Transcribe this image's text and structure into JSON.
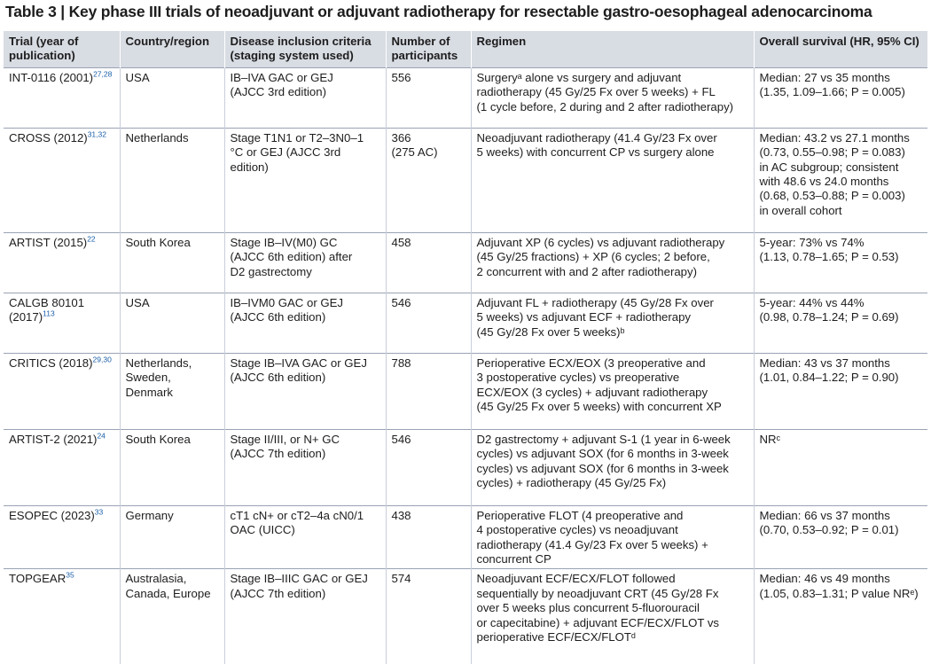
{
  "title": "Table 3 | Key phase III trials of neoadjuvant or adjuvant radiotherapy for resectable gastro-oesophageal adenocarcinoma",
  "columns": [
    "Trial (year of publication)",
    "Country/region",
    "Disease inclusion criteria (staging system used)",
    "Number of participants",
    "Regimen",
    "Overall survival (HR, 95% CI)"
  ],
  "rows": [
    {
      "trial": "INT-0116 (2001)",
      "ref": "27,28",
      "country": "USA",
      "criteria": "IB–IVA GAC or GEJ\n(AJCC 3rd edition)",
      "participants": "556",
      "regimen": "Surgeryᵃ alone vs surgery and adjuvant\nradiotherapy (45 Gy/25 Fx over 5 weeks) + FL\n(1 cycle before, 2 during and 2 after radiotherapy)",
      "survival": "Median: 27 vs 35 months\n(1.35, 1.09–1.66; P = 0.005)"
    },
    {
      "trial": "CROSS (2012)",
      "ref": "31,32",
      "country": "Netherlands",
      "criteria": "Stage T1N1 or T2–3N0–1\n°C or GEJ (AJCC 3rd\nedition)",
      "participants": "366\n(275 AC)",
      "regimen": "Neoadjuvant radiotherapy (41.4 Gy/23 Fx over\n5 weeks) with concurrent CP vs surgery alone",
      "survival": "Median: 43.2 vs 27.1 months\n(0.73, 0.55–0.98; P = 0.083)\nin AC subgroup; consistent\nwith 48.6 vs 24.0 months\n(0.68, 0.53–0.88; P = 0.003)\nin overall cohort"
    },
    {
      "trial": "ARTIST (2015)",
      "ref": "22",
      "country": "South Korea",
      "criteria": "Stage IB–IV(M0) GC\n(AJCC 6th edition) after\nD2 gastrectomy",
      "participants": "458",
      "regimen": "Adjuvant XP (6 cycles) vs adjuvant radiotherapy\n(45 Gy/25 fractions) + XP (6 cycles; 2 before,\n2 concurrent with and 2 after radiotherapy)",
      "survival": "5-year: 73% vs 74%\n(1.13, 0.78–1.65; P = 0.53)"
    },
    {
      "trial": "CALGB 80101\n(2017)",
      "ref": "113",
      "country": "USA",
      "criteria": "IB–IVM0 GAC or GEJ\n(AJCC 6th edition)",
      "participants": "546",
      "regimen": "Adjuvant FL + radiotherapy (45 Gy/28 Fx over\n5 weeks) vs adjuvant ECF + radiotherapy\n(45 Gy/28 Fx over 5 weeks)ᵇ",
      "survival": "5-year: 44% vs 44%\n(0.98, 0.78–1.24; P = 0.69)"
    },
    {
      "trial": "CRITICS (2018)",
      "ref": "29,30",
      "country": "Netherlands,\nSweden,\nDenmark",
      "criteria": "Stage IB–IVA GAC or GEJ\n(AJCC 6th edition)",
      "participants": "788",
      "regimen": "Perioperative ECX/EOX (3 preoperative and\n3 postoperative cycles) vs preoperative\nECX/EOX (3 cycles) + adjuvant radiotherapy\n(45 Gy/25 Fx over 5 weeks) with concurrent XP",
      "survival": "Median: 43 vs 37 months\n(1.01, 0.84–1.22; P = 0.90)"
    },
    {
      "trial": "ARTIST-2 (2021)",
      "ref": "24",
      "country": "South Korea",
      "criteria": "Stage II/III, or N+ GC\n(AJCC 7th edition)",
      "participants": "546",
      "regimen": "D2 gastrectomy + adjuvant S-1 (1 year in 6-week\ncycles) vs adjuvant SOX (for 6 months in 3-week\ncycles) vs adjuvant SOX (for 6 months in 3-week\ncycles) + radiotherapy (45 Gy/25 Fx)",
      "survival": "NRᶜ"
    },
    {
      "trial": "ESOPEC (2023)",
      "ref": "33",
      "country": "Germany",
      "criteria": "cT1 cN+ or cT2–4a cN0/1\nOAC (UICC)",
      "participants": "438",
      "regimen": "Perioperative FLOT (4 preoperative and\n4 postoperative cycles) vs neoadjuvant\nradiotherapy (41.4 Gy/23 Fx over 5 weeks) +\nconcurrent CP",
      "survival": "Median: 66 vs 37 months\n(0.70, 0.53–0.92; P = 0.01)"
    },
    {
      "trial": "TOPGEAR",
      "ref": "35",
      "country": "Australasia,\nCanada, Europe",
      "criteria": "Stage IB–IIIC GAC or GEJ\n(AJCC 7th edition)",
      "participants": "574",
      "regimen": "Neoadjuvant ECF/ECX/FLOT followed\nsequentially by neoadjuvant CRT (45 Gy/28 Fx\nover 5 weeks plus concurrent 5-fluorouracil\nor capecitabine) + adjuvant ECF/ECX/FLOT vs\nperioperative ECF/ECX/FLOTᵈ",
      "survival": "Median: 46 vs 49 months\n(1.05, 0.83–1.31; P value NRᵉ)"
    }
  ]
}
